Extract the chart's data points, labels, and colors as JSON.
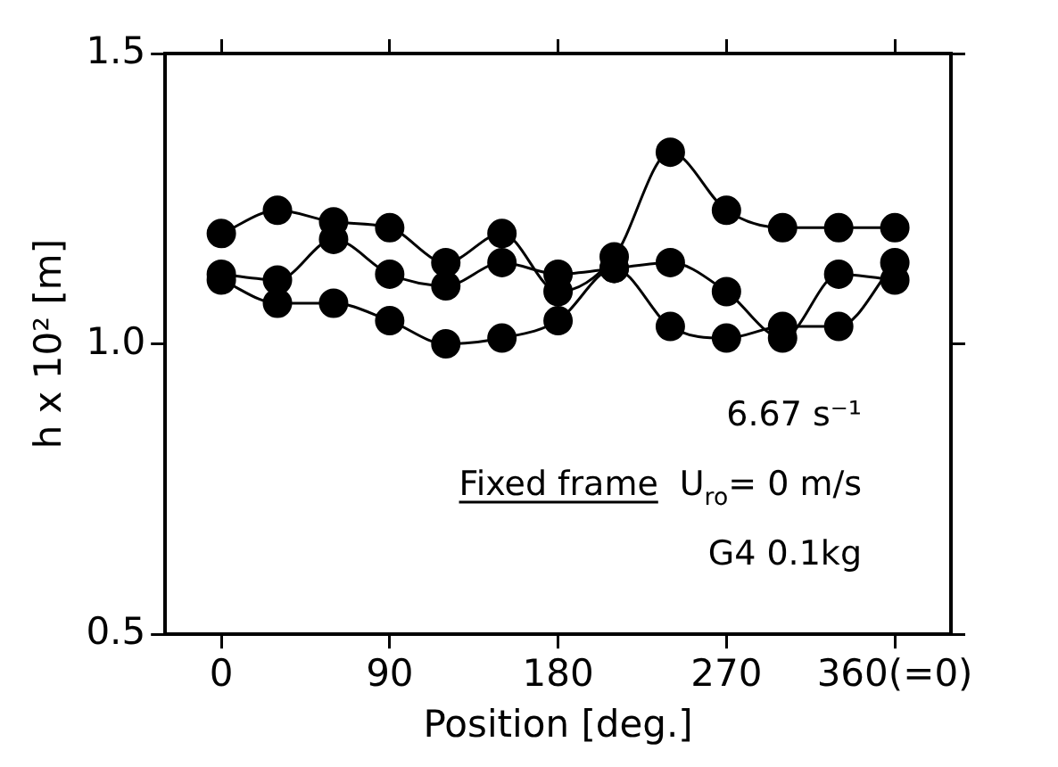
{
  "chart_data": {
    "type": "line",
    "xlabel": "Position [deg.]",
    "ylabel": "h x 10² [m]",
    "x": [
      0,
      30,
      60,
      90,
      120,
      150,
      180,
      210,
      240,
      270,
      300,
      330,
      360
    ],
    "series": [
      {
        "color": "#000000",
        "values": [
          1.19,
          1.23,
          1.21,
          1.2,
          1.14,
          1.19,
          1.09,
          1.15,
          1.33,
          1.23,
          1.2,
          1.2,
          1.2
        ]
      },
      {
        "color": "#000000",
        "values": [
          1.12,
          1.11,
          1.18,
          1.12,
          1.1,
          1.14,
          1.12,
          1.13,
          1.14,
          1.09,
          1.01,
          1.12,
          1.11
        ]
      },
      {
        "color": "#000000",
        "values": [
          1.11,
          1.07,
          1.07,
          1.04,
          1.0,
          1.01,
          1.04,
          1.13,
          1.03,
          1.01,
          1.03,
          1.03,
          1.14
        ]
      }
    ],
    "xlim": [
      -30,
      390
    ],
    "xticks": [
      0,
      90,
      180,
      270,
      {
        "value": 360,
        "label": "360(=0)"
      }
    ],
    "ylim": [
      0.5,
      1.5
    ],
    "yticks": [
      0.5,
      {
        "value": 1,
        "label": "1.0"
      },
      1.5
    ],
    "marker": "circle",
    "line_style": "solid",
    "grid": false,
    "legend": false,
    "annotations": [
      "6.67 s⁻¹",
      "Fixed frame",
      "U$_{ro}$= 0 m/s",
      "G4 0.1kg"
    ]
  }
}
